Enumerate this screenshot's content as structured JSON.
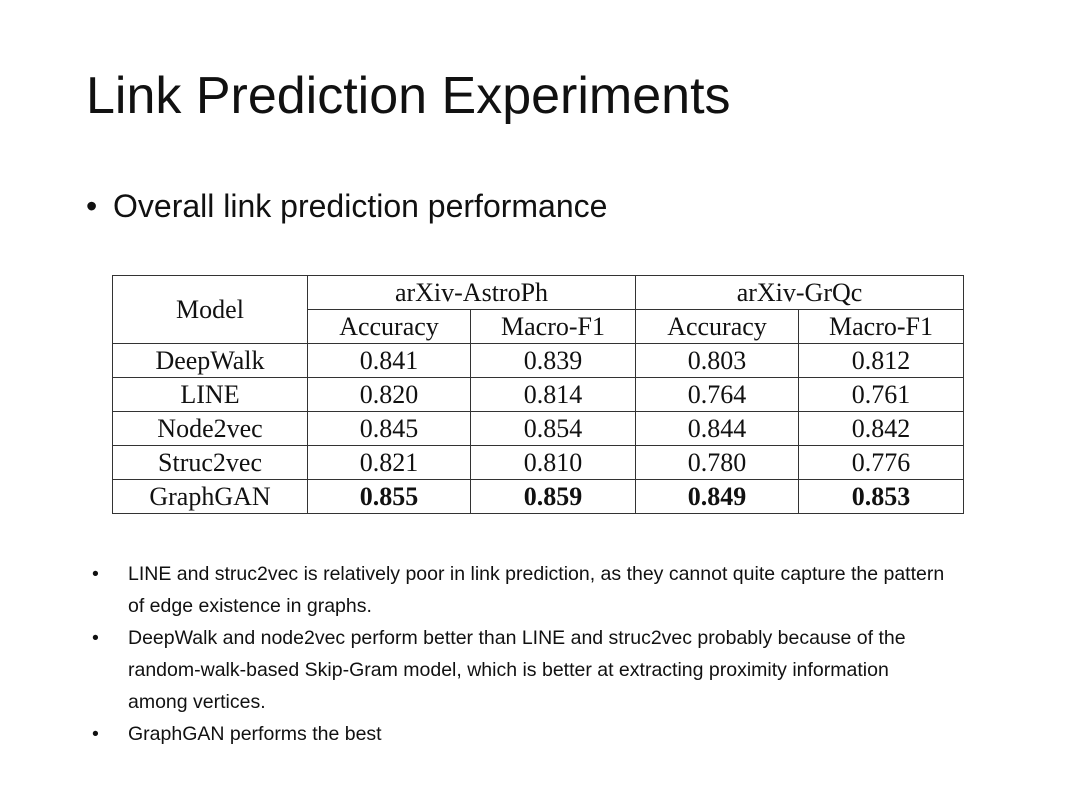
{
  "title": "Link Prediction Experiments",
  "subtitle": "Overall link prediction performance",
  "table": {
    "model_header": "Model",
    "groups": [
      "arXiv-AstroPh",
      "arXiv-GrQc"
    ],
    "metrics": [
      "Accuracy",
      "Macro-F1",
      "Accuracy",
      "Macro-F1"
    ],
    "rows": [
      [
        "DeepWalk",
        "0.841",
        "0.839",
        "0.803",
        "0.812"
      ],
      [
        "LINE",
        "0.820",
        "0.814",
        "0.764",
        "0.761"
      ],
      [
        "Node2vec",
        "0.845",
        "0.854",
        "0.844",
        "0.842"
      ],
      [
        "Struc2vec",
        "0.821",
        "0.810",
        "0.780",
        "0.776"
      ],
      [
        "GraphGAN",
        "0.855",
        "0.859",
        "0.849",
        "0.853"
      ]
    ]
  },
  "notes": [
    "LINE and struc2vec is relatively poor in link prediction, as they cannot quite capture the pattern of edge existence in graphs.",
    "DeepWalk and node2vec perform better than LINE and struc2vec probably because of the random-walk-based Skip-Gram model, which is better at extracting proximity information among vertices.",
    "GraphGAN performs the best"
  ]
}
